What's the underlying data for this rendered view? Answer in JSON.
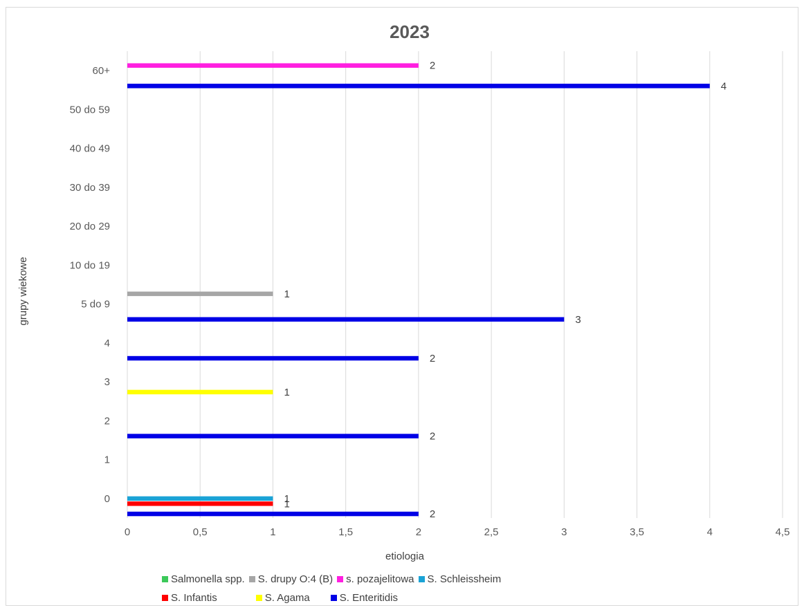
{
  "chart_data": {
    "type": "bar",
    "orientation": "horizontal",
    "title": "2023",
    "xlabel": "etiologia",
    "ylabel": "grupy wiekowe",
    "categories": [
      "0",
      "1",
      "2",
      "3",
      "4",
      "5 do 9",
      "10 do 19",
      "20 do 29",
      "30 do 39",
      "40 do 49",
      "50 do 59",
      "60+"
    ],
    "xlim": [
      0,
      4.5
    ],
    "x_ticks": [
      "0",
      "0,5",
      "1",
      "1,5",
      "2",
      "2,5",
      "3",
      "3,5",
      "4",
      "4,5"
    ],
    "grid": "vertical",
    "legend_position": "bottom",
    "series": [
      {
        "name": "Salmonella spp.",
        "color": "#3cc95a",
        "values": [
          null,
          null,
          null,
          null,
          null,
          null,
          null,
          null,
          null,
          null,
          null,
          null
        ]
      },
      {
        "name": "S. drupy O:4 (B)",
        "color": "#a6a6a6",
        "values": [
          null,
          null,
          null,
          null,
          null,
          1,
          null,
          null,
          null,
          null,
          null,
          null
        ]
      },
      {
        "name": "s. pozajelitowa",
        "color": "#ff1fe0",
        "values": [
          null,
          null,
          null,
          null,
          null,
          null,
          null,
          null,
          null,
          null,
          null,
          2
        ]
      },
      {
        "name": "S. Schleissheim",
        "color": "#1aa3d6",
        "values": [
          1,
          null,
          null,
          null,
          null,
          null,
          null,
          null,
          null,
          null,
          null,
          null
        ]
      },
      {
        "name": "S. Infantis",
        "color": "#ff0000",
        "values": [
          1,
          null,
          null,
          null,
          null,
          null,
          null,
          null,
          null,
          null,
          null,
          null
        ]
      },
      {
        "name": "S. Agama",
        "color": "#ffff00",
        "values": [
          null,
          null,
          null,
          1,
          null,
          null,
          null,
          null,
          null,
          null,
          null,
          null
        ]
      },
      {
        "name": "S. Enteritidis",
        "color": "#0000e6",
        "values": [
          2,
          null,
          2,
          null,
          2,
          3,
          null,
          null,
          null,
          null,
          null,
          4
        ]
      }
    ],
    "data_labels": [
      {
        "series": "S. Enteritidis",
        "category": "0",
        "text": "2"
      },
      {
        "series": "S. Infantis",
        "category": "0",
        "text": "1"
      },
      {
        "series": "S. Schleissheim",
        "category": "0",
        "text": "1"
      },
      {
        "series": "S. Enteritidis",
        "category": "2",
        "text": "2"
      },
      {
        "series": "S. Agama",
        "category": "3",
        "text": "1"
      },
      {
        "series": "S. Enteritidis",
        "category": "4",
        "text": "2"
      },
      {
        "series": "S. Enteritidis",
        "category": "5 do 9",
        "text": "3"
      },
      {
        "series": "S. drupy O:4 (B)",
        "category": "5 do 9",
        "text": "1"
      },
      {
        "series": "S. Enteritidis",
        "category": "60+",
        "text": "4"
      },
      {
        "series": "s. pozajelitowa",
        "category": "60+",
        "text": "2"
      }
    ]
  }
}
